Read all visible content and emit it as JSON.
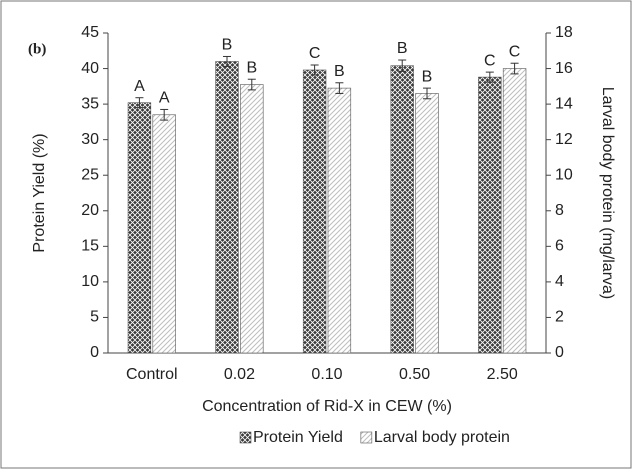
{
  "chart_data": {
    "type": "bar",
    "panel_label": "(b)",
    "x_label": "Concentration of Rid-X in CEW (%)",
    "y_label": "Protein Yield (%)",
    "y2_label": "Larval body protein (mg/larva)",
    "categories": [
      "Control",
      "0.02",
      "0.10",
      "0.50",
      "2.50"
    ],
    "series": [
      {
        "name": "Protein Yield",
        "color": "#3a3a3a",
        "pattern": "crosshatch",
        "values": [
          35.2,
          41.0,
          39.8,
          40.4,
          38.8
        ],
        "errors": [
          0.7,
          0.7,
          0.7,
          0.8,
          0.7
        ],
        "letters": [
          "A",
          "B",
          "C",
          "B",
          "C"
        ]
      },
      {
        "name": "Larval body protein",
        "color": "#bdbdbd",
        "pattern": "diagonal",
        "axis": "y2",
        "values": [
          13.4,
          15.1,
          14.9,
          14.6,
          16.0
        ],
        "errors": [
          0.3,
          0.3,
          0.3,
          0.3,
          0.3
        ],
        "letters": [
          "A",
          "B",
          "B",
          "B",
          "C"
        ]
      }
    ],
    "ylim": [
      0,
      45
    ],
    "yticks": [
      0,
      5,
      10,
      15,
      20,
      25,
      30,
      35,
      40,
      45
    ],
    "y2lim": [
      0,
      18
    ],
    "y2ticks": [
      0,
      2,
      4,
      6,
      8,
      10,
      12,
      14,
      16,
      18
    ],
    "legend": "bottom"
  }
}
